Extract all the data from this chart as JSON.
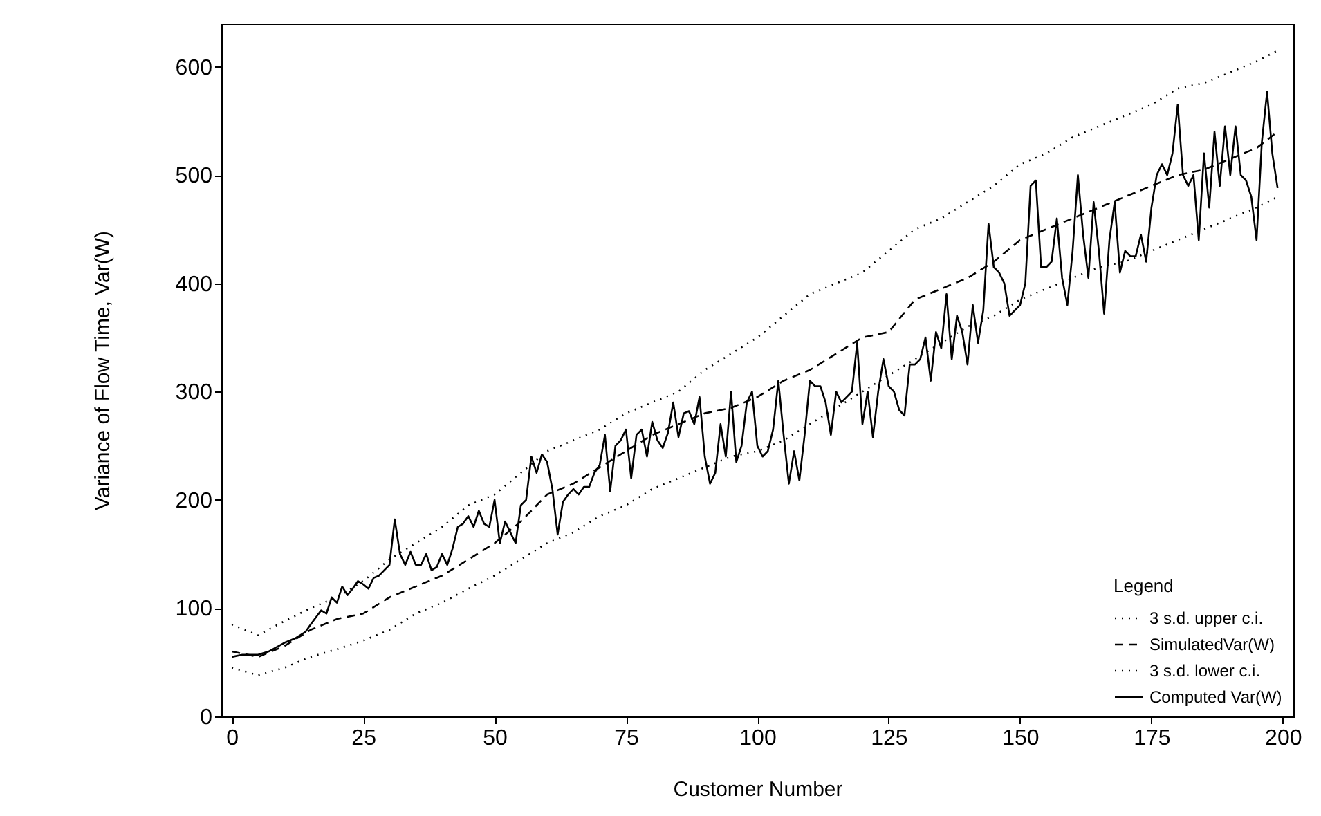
{
  "chart_data": {
    "type": "line",
    "xlabel": "Customer Number",
    "ylabel": "Variance of Flow Time, Var(W)",
    "legend_title": "Legend",
    "legend": "bottom right",
    "grid": false,
    "marker": "none",
    "xlim": [
      -2,
      202
    ],
    "ylim": [
      0,
      640
    ],
    "xticks": [
      0,
      25,
      50,
      75,
      100,
      125,
      150,
      175,
      200
    ],
    "yticks": [
      0,
      100,
      200,
      300,
      400,
      500,
      600
    ],
    "series": [
      {
        "name": "3 s.d. upper c.i.",
        "color": "#000000",
        "line_style": "dotted",
        "x": [
          0,
          5,
          10,
          15,
          20,
          25,
          30,
          35,
          40,
          45,
          50,
          55,
          60,
          65,
          70,
          75,
          80,
          85,
          90,
          95,
          100,
          105,
          110,
          115,
          120,
          125,
          130,
          135,
          140,
          145,
          150,
          155,
          160,
          165,
          170,
          175,
          180,
          185,
          190,
          195,
          199
        ],
        "values": [
          85,
          75,
          88,
          100,
          110,
          125,
          145,
          160,
          175,
          195,
          205,
          225,
          245,
          255,
          265,
          280,
          290,
          300,
          320,
          335,
          350,
          370,
          390,
          400,
          410,
          430,
          450,
          460,
          475,
          490,
          510,
          520,
          535,
          545,
          555,
          565,
          580,
          585,
          595,
          605,
          615
        ]
      },
      {
        "name": "SimulatedVar(W)",
        "color": "#000000",
        "line_style": "dashed",
        "x": [
          0,
          5,
          10,
          15,
          20,
          25,
          30,
          35,
          40,
          45,
          50,
          55,
          60,
          65,
          70,
          75,
          80,
          85,
          90,
          95,
          100,
          105,
          110,
          115,
          120,
          125,
          130,
          135,
          140,
          145,
          150,
          155,
          160,
          165,
          170,
          175,
          180,
          185,
          190,
          195,
          199
        ],
        "values": [
          60,
          55,
          65,
          80,
          90,
          95,
          110,
          120,
          130,
          145,
          160,
          180,
          205,
          215,
          230,
          245,
          260,
          270,
          280,
          285,
          295,
          310,
          320,
          335,
          350,
          355,
          385,
          395,
          405,
          420,
          440,
          450,
          460,
          470,
          480,
          490,
          500,
          505,
          515,
          525,
          540
        ]
      },
      {
        "name": "3 s.d. lower c.i.",
        "color": "#000000",
        "line_style": "dotted",
        "x": [
          0,
          5,
          10,
          15,
          20,
          25,
          30,
          35,
          40,
          45,
          50,
          55,
          60,
          65,
          70,
          75,
          80,
          85,
          90,
          95,
          100,
          105,
          110,
          115,
          120,
          125,
          130,
          135,
          140,
          145,
          150,
          155,
          160,
          165,
          170,
          175,
          180,
          185,
          190,
          195,
          199
        ],
        "values": [
          45,
          38,
          45,
          55,
          62,
          70,
          80,
          95,
          105,
          118,
          130,
          145,
          160,
          170,
          185,
          195,
          210,
          220,
          230,
          240,
          245,
          255,
          270,
          285,
          300,
          315,
          330,
          345,
          360,
          370,
          385,
          395,
          405,
          415,
          420,
          430,
          440,
          450,
          460,
          470,
          480
        ]
      },
      {
        "name": "Computed Var(W)",
        "color": "#000000",
        "line_style": "solid",
        "x": [
          0,
          2,
          5,
          7,
          10,
          12,
          14,
          15,
          17,
          18,
          19,
          20,
          21,
          22,
          23,
          24,
          25,
          26,
          27,
          28,
          29,
          30,
          31,
          32,
          33,
          34,
          35,
          36,
          37,
          38,
          39,
          40,
          41,
          42,
          43,
          44,
          45,
          46,
          47,
          48,
          49,
          50,
          51,
          52,
          53,
          54,
          55,
          56,
          57,
          58,
          59,
          60,
          61,
          62,
          63,
          64,
          65,
          66,
          67,
          68,
          69,
          70,
          71,
          72,
          73,
          74,
          75,
          76,
          77,
          78,
          79,
          80,
          81,
          82,
          83,
          84,
          85,
          86,
          87,
          88,
          89,
          90,
          91,
          92,
          93,
          94,
          95,
          96,
          97,
          98,
          99,
          100,
          101,
          102,
          103,
          104,
          105,
          106,
          107,
          108,
          109,
          110,
          111,
          112,
          113,
          114,
          115,
          116,
          117,
          118,
          119,
          120,
          121,
          122,
          123,
          124,
          125,
          126,
          127,
          128,
          129,
          130,
          131,
          132,
          133,
          134,
          135,
          136,
          137,
          138,
          139,
          140,
          141,
          142,
          143,
          144,
          145,
          146,
          147,
          148,
          149,
          150,
          151,
          152,
          153,
          154,
          155,
          156,
          157,
          158,
          159,
          160,
          161,
          162,
          163,
          164,
          165,
          166,
          167,
          168,
          169,
          170,
          171,
          172,
          173,
          174,
          175,
          176,
          177,
          178,
          179,
          180,
          181,
          182,
          183,
          184,
          185,
          186,
          187,
          188,
          189,
          190,
          191,
          192,
          193,
          194,
          195,
          196,
          197,
          198,
          199
        ],
        "values": [
          55,
          57,
          57,
          60,
          68,
          72,
          78,
          85,
          98,
          95,
          110,
          105,
          120,
          112,
          118,
          125,
          122,
          118,
          128,
          130,
          135,
          140,
          182,
          150,
          140,
          152,
          140,
          140,
          150,
          135,
          138,
          150,
          140,
          155,
          175,
          178,
          185,
          175,
          190,
          178,
          175,
          200,
          160,
          180,
          170,
          160,
          195,
          200,
          240,
          225,
          242,
          235,
          210,
          168,
          198,
          205,
          210,
          205,
          212,
          212,
          225,
          232,
          260,
          208,
          250,
          255,
          265,
          220,
          260,
          265,
          240,
          272,
          255,
          248,
          262,
          290,
          258,
          280,
          282,
          270,
          295,
          240,
          215,
          225,
          270,
          240,
          300,
          235,
          250,
          290,
          300,
          250,
          240,
          245,
          265,
          310,
          260,
          215,
          245,
          218,
          260,
          310,
          305,
          305,
          290,
          260,
          300,
          290,
          295,
          300,
          345,
          270,
          300,
          258,
          300,
          330,
          305,
          300,
          283,
          278,
          325,
          325,
          330,
          350,
          310,
          355,
          340,
          390,
          330,
          370,
          355,
          325,
          380,
          345,
          375,
          455,
          415,
          410,
          400,
          370,
          375,
          380,
          400,
          490,
          495,
          415,
          415,
          420,
          460,
          405,
          380,
          430,
          500,
          445,
          405,
          475,
          430,
          372,
          440,
          475,
          410,
          430,
          425,
          425,
          445,
          420,
          470,
          500,
          510,
          500,
          520,
          565,
          500,
          490,
          500,
          440,
          520,
          470,
          540,
          490,
          545,
          500,
          545,
          500,
          495,
          480,
          440,
          530,
          577,
          520,
          488
        ]
      }
    ]
  }
}
